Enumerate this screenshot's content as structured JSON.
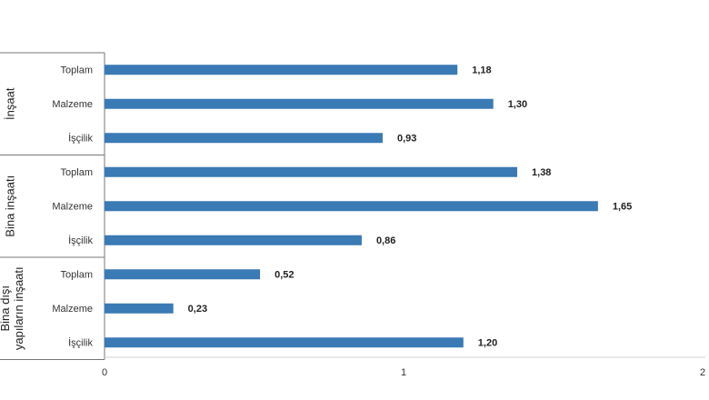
{
  "chart_data": {
    "type": "bar",
    "orientation": "horizontal",
    "xlim": [
      0,
      2
    ],
    "x_ticks": [
      "0",
      "1",
      "2"
    ],
    "grid": false,
    "legend": "none",
    "bar_color": "#3a7ab5",
    "groups": [
      {
        "name_lines": [
          "İnşaat"
        ],
        "categories": [
          "Toplam",
          "Malzeme",
          "İşçilik"
        ],
        "values": [
          1.18,
          1.3,
          0.93
        ],
        "value_labels": [
          "1,18",
          "1,30",
          "0,93"
        ]
      },
      {
        "name_lines": [
          "Bina inşaatı"
        ],
        "categories": [
          "Toplam",
          "Malzeme",
          "İşçilik"
        ],
        "values": [
          1.38,
          1.65,
          0.86
        ],
        "value_labels": [
          "1,38",
          "1,65",
          "0,86"
        ]
      },
      {
        "name_lines": [
          "Bina dışı",
          "yapıların inşaatı"
        ],
        "categories": [
          "Toplam",
          "Malzeme",
          "İşçilik"
        ],
        "values": [
          0.52,
          0.23,
          1.2
        ],
        "value_labels": [
          "0,52",
          "0,23",
          "1,20"
        ]
      }
    ]
  }
}
